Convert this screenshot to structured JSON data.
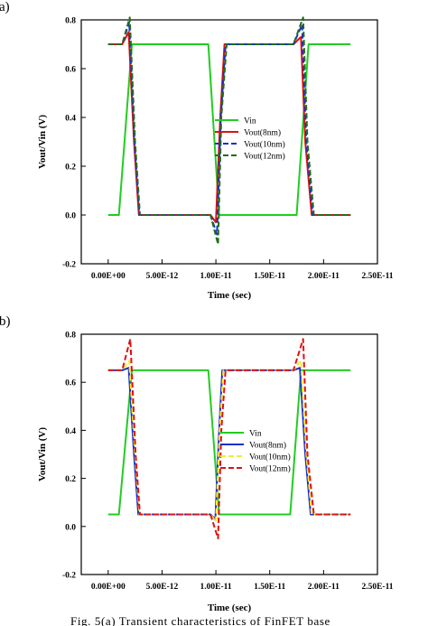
{
  "figure": {
    "caption": "Fig. 5(a) Transient characteristics of FinFET base"
  },
  "chart_data": [
    {
      "panel_label": "(a)",
      "type": "line",
      "xlabel": "Time (sec)",
      "ylabel": "Vout/Vin (V)",
      "xlim": [
        -2.5e-12,
        2.5e-11
      ],
      "ylim": [
        -0.2,
        0.8
      ],
      "xticks": [
        0,
        5e-12,
        1e-11,
        1.5e-11,
        2e-11,
        2.5e-11
      ],
      "xtick_labels": [
        "0.00E+00",
        "5.00E-12",
        "1.00E-11",
        "1.50E-11",
        "2.00E-11",
        "2.50E-11"
      ],
      "yticks": [
        -0.2,
        0.0,
        0.2,
        0.4,
        0.6,
        0.8
      ],
      "ytick_labels": [
        "-0.2",
        "0.0",
        "0.2",
        "0.4",
        "0.6",
        "0.8"
      ],
      "legend_position": "center",
      "series": [
        {
          "name": "Vin",
          "color": "#22cc22",
          "dash": "solid",
          "x": [
            0,
            1e-12,
            2.2e-12,
            9.3e-12,
            1.03e-11,
            1.75e-11,
            1.86e-11,
            2.25e-11
          ],
          "y": [
            0.0,
            0.0,
            0.7,
            0.7,
            0.0,
            0.0,
            0.7,
            0.7
          ]
        },
        {
          "name": "Vout(8nm)",
          "color": "#dd1111",
          "dash": "solid",
          "x": [
            0,
            1.3e-12,
            1.9e-12,
            2.4e-12,
            2.85e-12,
            9.5e-12,
            1e-11,
            1.04e-11,
            1.08e-11,
            1.72e-11,
            1.79e-11,
            1.83e-11,
            1.89e-11,
            2.25e-11
          ],
          "y": [
            0.7,
            0.7,
            0.75,
            0.3,
            0.0,
            0.0,
            -0.03,
            0.4,
            0.7,
            0.7,
            0.73,
            0.3,
            0.0,
            0.0
          ]
        },
        {
          "name": "Vout(10nm)",
          "color": "#1a2ecc",
          "dash": "dashed",
          "x": [
            0,
            1.3e-12,
            1.95e-12,
            2.45e-12,
            2.9e-12,
            9.5e-12,
            1.01e-11,
            1.045e-11,
            1.09e-11,
            1.72e-11,
            1.8e-11,
            1.84e-11,
            1.9e-11,
            2.25e-11
          ],
          "y": [
            0.7,
            0.7,
            0.79,
            0.3,
            0.0,
            0.0,
            -0.08,
            0.4,
            0.7,
            0.7,
            0.78,
            0.3,
            0.0,
            0.0
          ]
        },
        {
          "name": "Vout(12nm)",
          "color": "#1f6e1f",
          "dash": "dashed",
          "x": [
            0,
            1.3e-12,
            2e-12,
            2.5e-12,
            2.95e-12,
            9.5e-12,
            1.02e-11,
            1.05e-11,
            1.1e-11,
            1.72e-11,
            1.81e-11,
            1.85e-11,
            1.91e-11,
            2.25e-11
          ],
          "y": [
            0.7,
            0.7,
            0.81,
            0.3,
            0.0,
            0.0,
            -0.12,
            0.4,
            0.7,
            0.7,
            0.81,
            0.3,
            0.0,
            0.0
          ]
        }
      ]
    },
    {
      "panel_label": "(b)",
      "type": "line",
      "xlabel": "Time (sec)",
      "ylabel": "Vout/Vin (V)",
      "xlim": [
        -2.5e-12,
        2.5e-11
      ],
      "ylim": [
        -0.2,
        0.8
      ],
      "xticks": [
        0,
        5e-12,
        1e-11,
        1.5e-11,
        2e-11,
        2.5e-11
      ],
      "xtick_labels": [
        "0.00E+00",
        "5.00E-12",
        "1.00E-11",
        "1.50E-11",
        "2.00E-11",
        "2.50E-11"
      ],
      "yticks": [
        -0.2,
        0.0,
        0.2,
        0.4,
        0.6,
        0.8
      ],
      "ytick_labels": [
        "-0.2",
        "0.0",
        "0.2",
        "0.4",
        "0.6",
        "0.8"
      ],
      "legend_position": "center-right",
      "series": [
        {
          "name": "Vin",
          "color": "#22cc22",
          "dash": "solid",
          "x": [
            0,
            1e-12,
            2.2e-12,
            9.3e-12,
            1.03e-11,
            1.69e-11,
            1.79e-11,
            2.25e-11
          ],
          "y": [
            0.05,
            0.05,
            0.65,
            0.65,
            0.05,
            0.05,
            0.65,
            0.65
          ]
        },
        {
          "name": "Vout(8nm)",
          "color": "#1a2ecc",
          "dash": "solid",
          "x": [
            0,
            1.3e-12,
            1.9e-12,
            2.4e-12,
            2.8e-12,
            9.5e-12,
            9.95e-12,
            1.03e-11,
            1.06e-11,
            1.72e-11,
            1.78e-11,
            1.83e-11,
            1.88e-11,
            2.25e-11
          ],
          "y": [
            0.65,
            0.65,
            0.66,
            0.3,
            0.05,
            0.05,
            0.03,
            0.4,
            0.65,
            0.65,
            0.66,
            0.3,
            0.05,
            0.05
          ]
        },
        {
          "name": "Vout(10nm)",
          "color": "#f2ee33",
          "dash": "dashed",
          "x": [
            0,
            1.3e-12,
            1.95e-12,
            2.5e-12,
            2.9e-12,
            9.5e-12,
            1e-11,
            1.035e-11,
            1.07e-11,
            1.72e-11,
            1.79e-11,
            1.84e-11,
            1.89e-11,
            2.25e-11
          ],
          "y": [
            0.65,
            0.65,
            0.69,
            0.3,
            0.05,
            0.05,
            0.02,
            0.4,
            0.65,
            0.65,
            0.69,
            0.3,
            0.05,
            0.05
          ]
        },
        {
          "name": "Vout(12nm)",
          "color": "#dd1111",
          "dash": "dashed",
          "x": [
            0,
            1.3e-12,
            2.05e-12,
            2.55e-12,
            2.95e-12,
            9.5e-12,
            1.02e-11,
            1.05e-11,
            1.09e-11,
            1.72e-11,
            1.81e-11,
            1.85e-11,
            1.91e-11,
            2.25e-11
          ],
          "y": [
            0.65,
            0.65,
            0.78,
            0.3,
            0.05,
            0.05,
            -0.05,
            0.4,
            0.65,
            0.65,
            0.78,
            0.3,
            0.05,
            0.05
          ]
        }
      ]
    }
  ]
}
